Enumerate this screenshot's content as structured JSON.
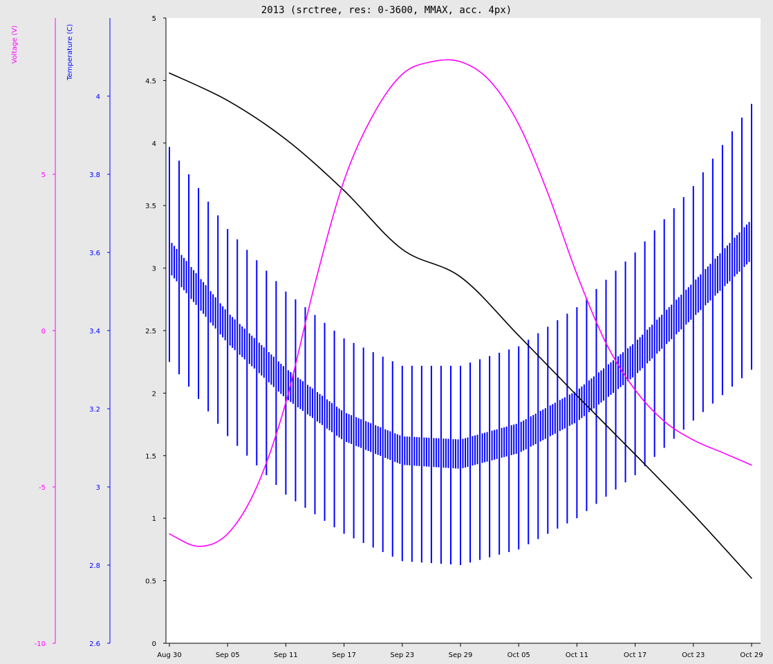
{
  "title": "2013 (srctree, res: 0-3600, MMAX, acc. 4px)",
  "colors": {
    "background": "#e8e8e8",
    "plot_background": "#ffffff",
    "voltage": "#ff00ff",
    "temperature": "#0000ff",
    "primary": "#000000"
  },
  "axes": {
    "voltage": {
      "label": "Voltage (V)",
      "range": [
        -10,
        10
      ],
      "ticks": [
        "5",
        "0",
        "-5",
        "-10"
      ],
      "tick_values": [
        5,
        0,
        -5,
        -10
      ]
    },
    "temperature": {
      "label": "Temperature (C)",
      "range": [
        2.6,
        4.2
      ],
      "ticks": [
        "4",
        "3.8",
        "3.6",
        "3.4",
        "3.2",
        "3",
        "2.8",
        "2.6"
      ],
      "tick_values": [
        4,
        3.8,
        3.6,
        3.4,
        3.2,
        3,
        2.8,
        2.6
      ]
    },
    "primary": {
      "label": "",
      "range": [
        0,
        5
      ],
      "ticks": [
        "5",
        "4.5",
        "4",
        "3.5",
        "3",
        "2.5",
        "2",
        "1.5",
        "1",
        "0.5",
        "0"
      ],
      "tick_values": [
        5,
        4.5,
        4,
        3.5,
        3,
        2.5,
        2,
        1.5,
        1,
        0.5,
        0
      ]
    },
    "x": {
      "ticks": [
        "Aug 30",
        "Sep 05",
        "Sep 11",
        "Sep 17",
        "Sep 23",
        "Sep 29",
        "Oct 05",
        "Oct 11",
        "Oct 17",
        "Oct 23",
        "Oct 29"
      ],
      "tick_values": [
        "2013-08-30",
        "2013-09-05",
        "2013-09-11",
        "2013-09-17",
        "2013-09-23",
        "2013-09-29",
        "2013-10-05",
        "2013-10-11",
        "2013-10-17",
        "2013-10-23",
        "2013-10-29"
      ],
      "range": [
        "2013-08-30",
        "2013-10-29"
      ]
    }
  },
  "chart_data": {
    "type": "line",
    "title": "2013 (srctree, res: 0-3600, MMAX, acc. 4px)",
    "x_unit": "date",
    "grid": false,
    "series": [
      {
        "key": "primary",
        "axis": "primary",
        "x": [
          "2013-08-30",
          "2013-09-05",
          "2013-09-11",
          "2013-09-17",
          "2013-09-23",
          "2013-09-29",
          "2013-10-05",
          "2013-10-11",
          "2013-10-17",
          "2013-10-23",
          "2013-10-29"
        ],
        "y": [
          4.56,
          4.34,
          4.03,
          3.62,
          3.15,
          2.93,
          2.46,
          1.98,
          1.51,
          1.03,
          0.52
        ]
      },
      {
        "key": "voltage",
        "axis": "voltage",
        "x": [
          "2013-08-30",
          "2013-09-02",
          "2013-09-05",
          "2013-09-08",
          "2013-09-11",
          "2013-09-14",
          "2013-09-17",
          "2013-09-20",
          "2013-09-23",
          "2013-09-26",
          "2013-09-29",
          "2013-10-02",
          "2013-10-05",
          "2013-10-08",
          "2013-10-11",
          "2013-10-14",
          "2013-10-17",
          "2013-10-20",
          "2013-10-23",
          "2013-10-26",
          "2013-10-29"
        ],
        "y": [
          -6.5,
          -6.9,
          -6.5,
          -5.0,
          -2.3,
          1.5,
          4.8,
          6.9,
          8.2,
          8.6,
          8.6,
          8.0,
          6.6,
          4.4,
          1.8,
          -0.4,
          -1.9,
          -2.9,
          -3.5,
          -3.9,
          -4.3
        ]
      }
    ],
    "envelopes": [
      {
        "key": "temperature",
        "axis": "temperature",
        "x": [
          "2013-08-30",
          "2013-09-05",
          "2013-09-11",
          "2013-09-17",
          "2013-09-23",
          "2013-09-29",
          "2013-10-05",
          "2013-10-11",
          "2013-10-17",
          "2013-10-23",
          "2013-10-29"
        ],
        "max": [
          3.87,
          3.66,
          3.5,
          3.38,
          3.31,
          3.31,
          3.36,
          3.46,
          3.6,
          3.77,
          3.98
        ],
        "mean": [
          3.58,
          3.4,
          3.26,
          3.15,
          3.09,
          3.08,
          3.12,
          3.2,
          3.32,
          3.47,
          3.62
        ],
        "min": [
          3.32,
          3.13,
          2.98,
          2.88,
          2.81,
          2.8,
          2.84,
          2.92,
          3.03,
          3.17,
          3.3
        ]
      }
    ]
  }
}
